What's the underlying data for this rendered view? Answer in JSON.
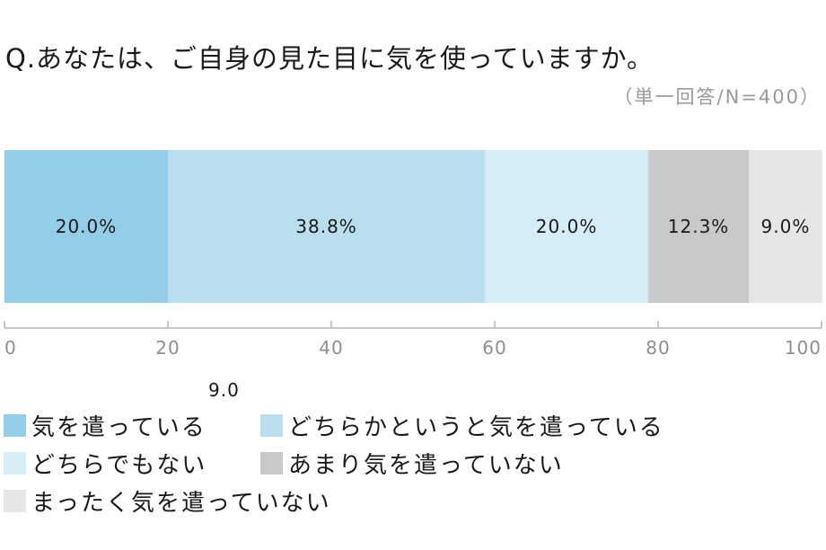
{
  "header": {
    "question": "Q.あなたは、ご自身の見た目に気を使っていますか。",
    "sample": "（単一回答/N=400）"
  },
  "stray_label": "9.0",
  "chart_data": {
    "type": "bar",
    "orientation": "horizontal-stacked",
    "xlim": [
      0,
      100
    ],
    "x_ticks": [
      "0",
      "20",
      "40",
      "60",
      "80",
      "100"
    ],
    "grid": false,
    "legend_position": "bottom",
    "series": [
      {
        "name": "気を遣っている",
        "value": 20.0,
        "label": "20.0%",
        "color": "#93cde8"
      },
      {
        "name": "どちらかというと気を遣っている",
        "value": 38.8,
        "label": "38.8%",
        "color": "#b9dfef"
      },
      {
        "name": "どちらでもない",
        "value": 20.0,
        "label": "20.0%",
        "color": "#d6ecf6"
      },
      {
        "name": "あまり気を遣っていない",
        "value": 12.3,
        "label": "12.3%",
        "color": "#c9c9c9"
      },
      {
        "name": "まったく気を遣っていない",
        "value": 9.0,
        "label": "9.0%",
        "color": "#e6e6e6"
      }
    ]
  }
}
